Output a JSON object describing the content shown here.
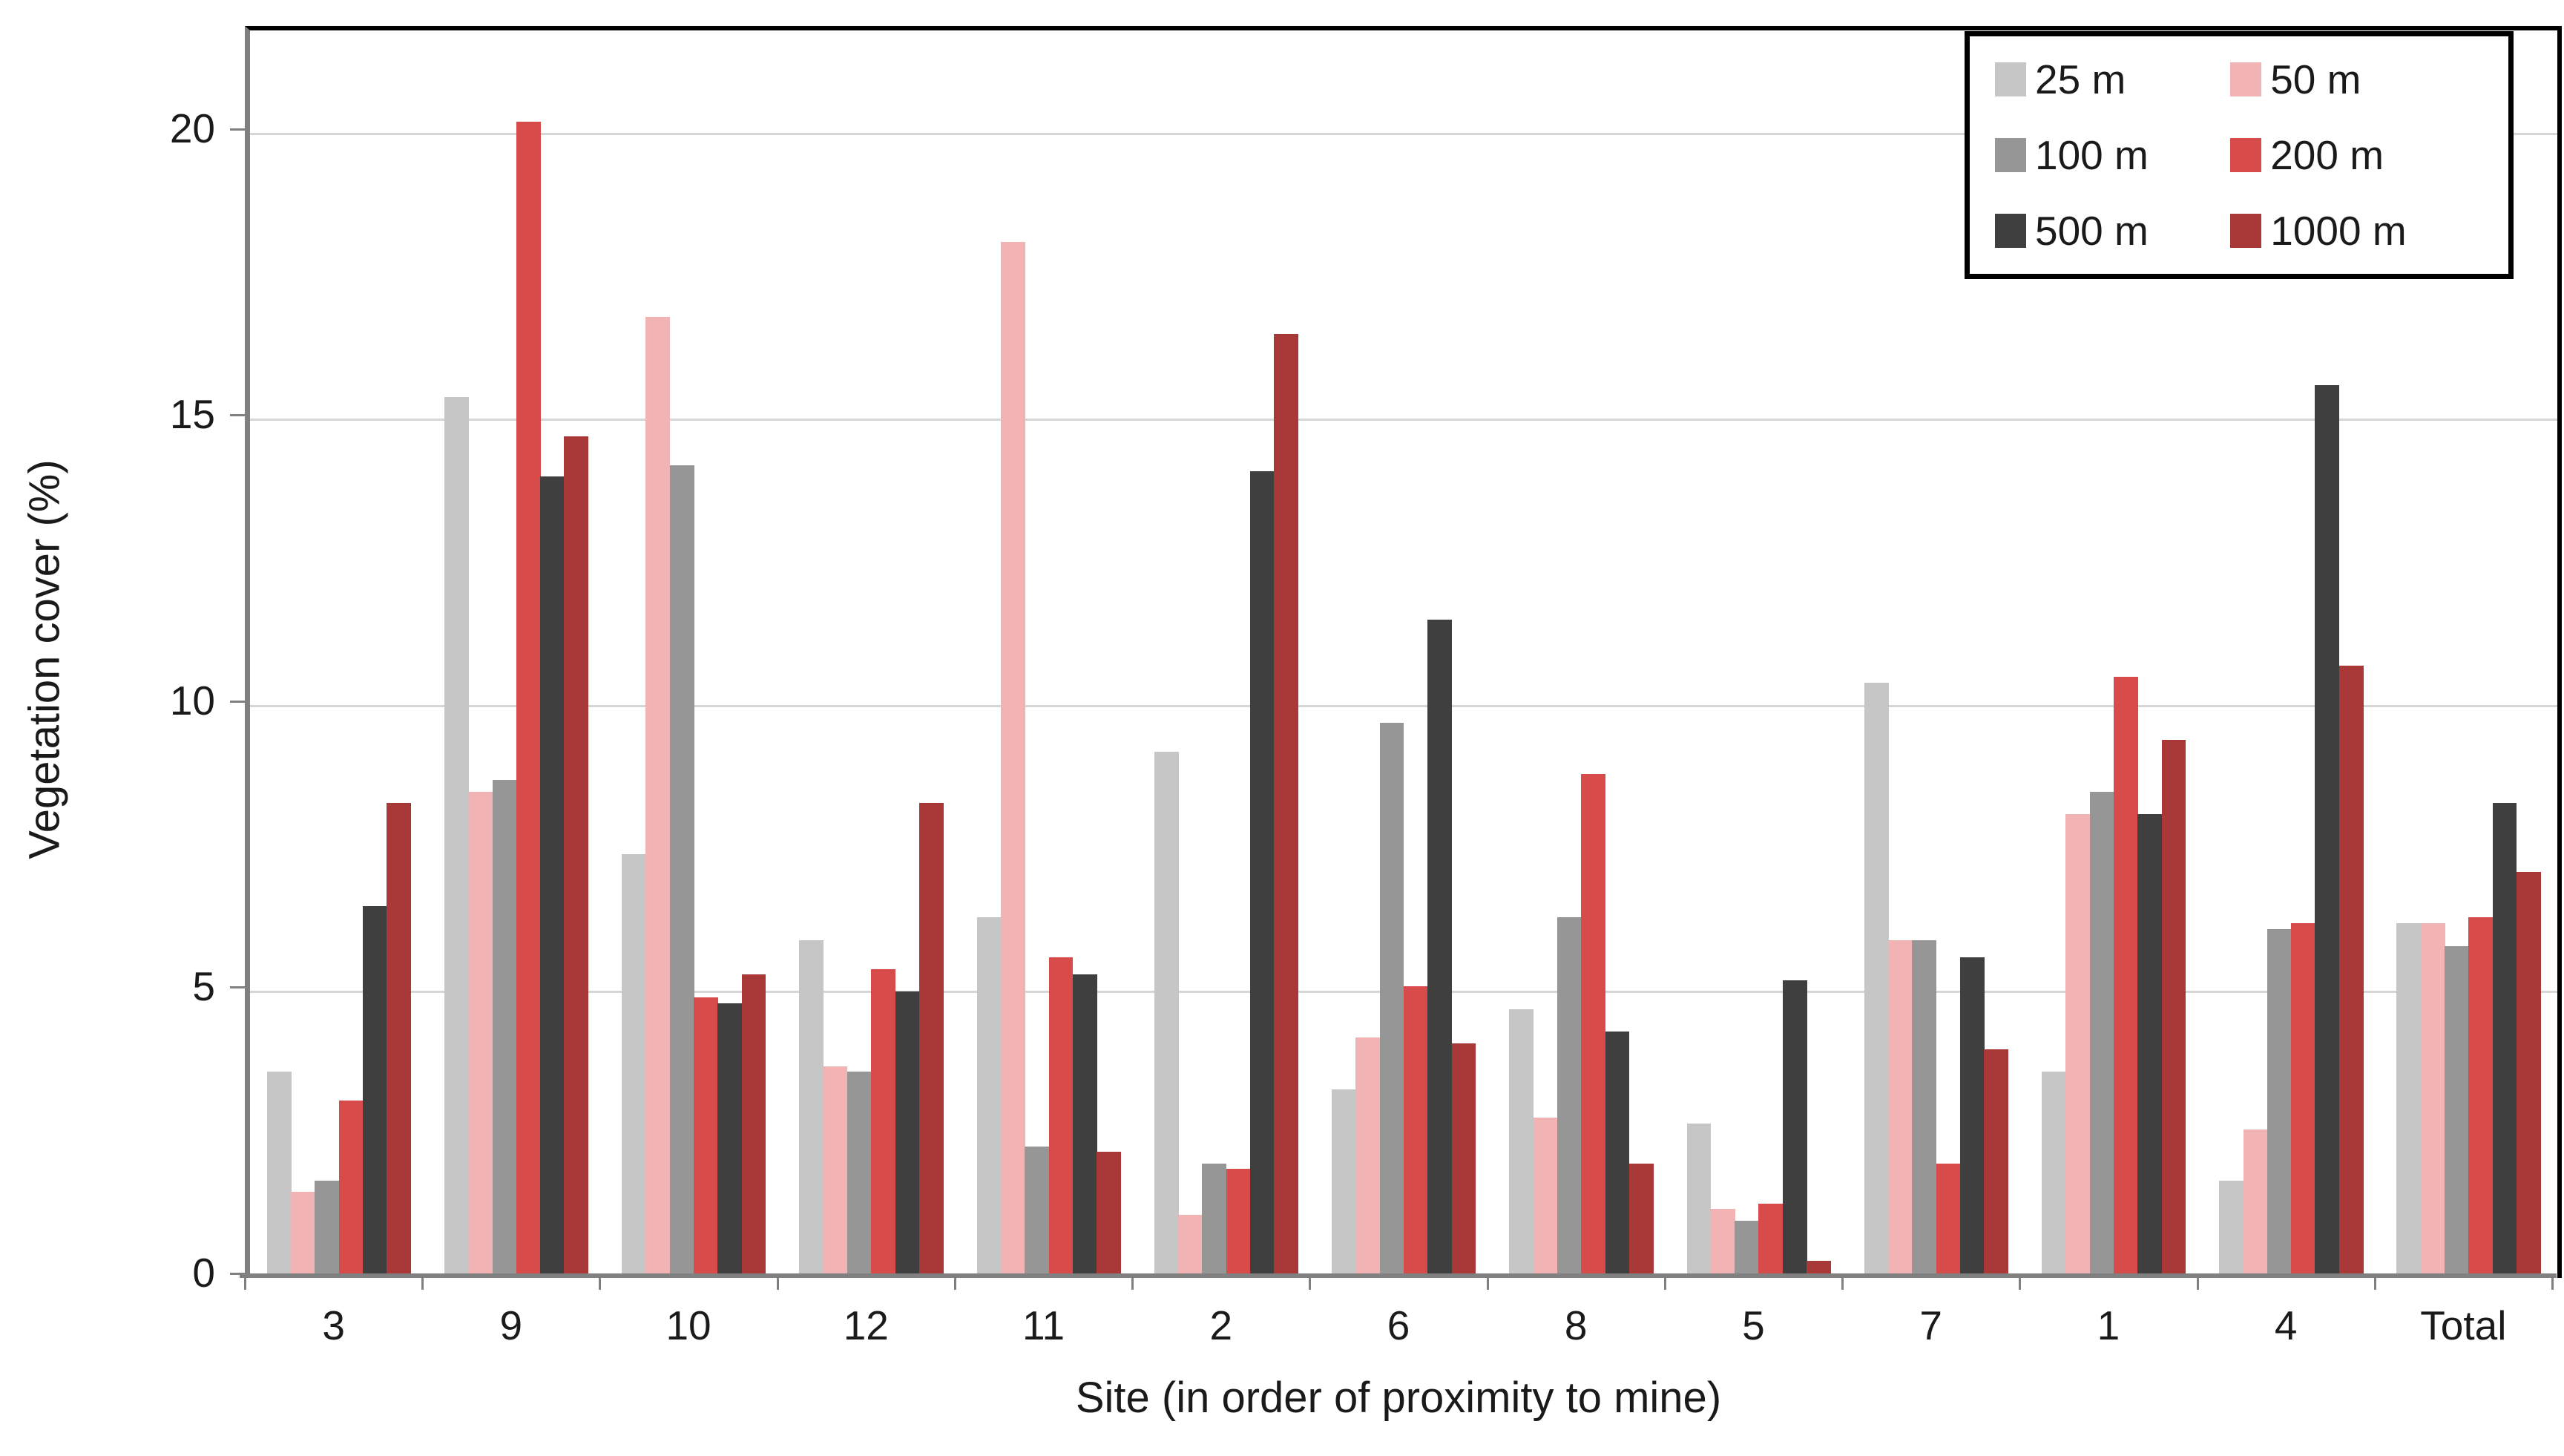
{
  "chart_data": {
    "type": "bar",
    "title": "",
    "xlabel": "Site (in order of proximity to mine)",
    "ylabel": "Vegetation cover (%)",
    "categories": [
      "3",
      "9",
      "10",
      "12",
      "11",
      "2",
      "6",
      "8",
      "5",
      "7",
      "1",
      "4",
      "Total"
    ],
    "series": [
      {
        "name": "25 m",
        "color": "#c6c6c6",
        "values": [
          3.6,
          15.4,
          7.4,
          5.9,
          6.3,
          9.2,
          3.3,
          4.7,
          2.7,
          10.4,
          3.6,
          1.7,
          6.2
        ]
      },
      {
        "name": "50 m",
        "color": "#f1b3b3",
        "values": [
          1.5,
          8.5,
          16.8,
          3.7,
          18.1,
          1.1,
          4.2,
          2.8,
          1.2,
          5.9,
          8.1,
          2.6,
          6.2
        ]
      },
      {
        "name": "100 m",
        "color": "#969696",
        "values": [
          1.7,
          8.7,
          14.2,
          3.6,
          2.3,
          2.0,
          9.7,
          6.3,
          1.0,
          5.9,
          8.5,
          6.1,
          5.8
        ]
      },
      {
        "name": "200 m",
        "color": "#d84b4b",
        "values": [
          3.1,
          20.2,
          4.9,
          5.4,
          5.6,
          1.9,
          5.1,
          8.8,
          1.3,
          2.0,
          10.5,
          6.2,
          6.3
        ]
      },
      {
        "name": "500 m",
        "color": "#3f3f3f",
        "values": [
          6.5,
          14.0,
          4.8,
          5.0,
          5.3,
          14.1,
          11.5,
          4.3,
          5.2,
          5.6,
          8.1,
          15.6,
          8.3
        ]
      },
      {
        "name": "1000 m",
        "color": "#a93939",
        "values": [
          8.3,
          14.7,
          5.3,
          8.3,
          2.2,
          16.5,
          4.1,
          2.0,
          0.3,
          4.0,
          9.4,
          10.7,
          7.1
        ]
      }
    ],
    "yticks": [
      0,
      5,
      10,
      15,
      20
    ],
    "ylim": [
      0,
      21.8
    ],
    "grid": true,
    "gridline_color": "#d6d6d6",
    "axis_line_color": "#808080",
    "border_color": "#000000",
    "legend_position": "top-right"
  }
}
